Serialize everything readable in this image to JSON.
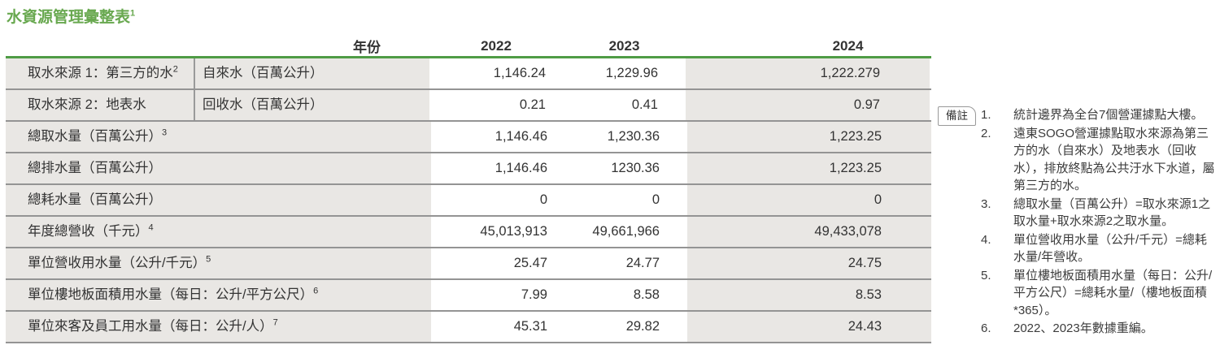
{
  "title": {
    "text": "水資源管理彙整表",
    "sup": "1"
  },
  "table": {
    "year_label": "年份",
    "years": [
      "2022",
      "2023",
      "2024"
    ],
    "rows": [
      {
        "label": "取水來源 1：第三方的水",
        "label_sup": "2",
        "sublabel": "自來水（百萬公升）",
        "values": [
          "1,146.24",
          "1,229.96",
          "1,222.279"
        ]
      },
      {
        "label": "取水來源 2：地表水",
        "sublabel": "回收水（百萬公升）",
        "values": [
          "0.21",
          "0.41",
          "0.97"
        ]
      },
      {
        "label": "總取水量（百萬公升）",
        "label_sup": "3",
        "values": [
          "1,146.46",
          "1,230.36",
          "1,223.25"
        ]
      },
      {
        "label": "總排水量（百萬公升）",
        "values": [
          "1,146.46",
          "1230.36",
          "1,223.25"
        ]
      },
      {
        "label": "總耗水量（百萬公升）",
        "values": [
          "0",
          "0",
          "0"
        ]
      },
      {
        "label": "年度總營收（千元）",
        "label_sup": "4",
        "values": [
          "45,013,913",
          "49,661,966",
          "49,433,078"
        ]
      },
      {
        "label": "單位營收用水量（公升/千元）",
        "label_sup": "5",
        "values": [
          "25.47",
          "24.77",
          "24.75"
        ]
      },
      {
        "label": "單位樓地板面積用水量（每日：公升/平方公尺）",
        "label_sup": "6",
        "values": [
          "7.99",
          "8.58",
          "8.53"
        ]
      },
      {
        "label": "單位來客及員工用水量（每日：公升/人）",
        "label_sup": "7",
        "values": [
          "45.31",
          "29.82",
          "24.43"
        ]
      }
    ]
  },
  "notes": {
    "badge": "備註",
    "items": [
      {
        "num": "1.",
        "text": "統計邊界為全台7個營運據點大樓。"
      },
      {
        "num": "2.",
        "text": "遠東SOGO營運據點取水來源為第三方的水（自來水）及地表水（回收水），排放終點為公共汙水下水道，屬第三方的水。"
      },
      {
        "num": "3.",
        "text": "總取水量（百萬公升）=取水來源1之取水量+取水來源2之取水量。"
      },
      {
        "num": "4.",
        "text": "單位營收用水量（公升/千元）=總耗水量/年營收。"
      },
      {
        "num": "5.",
        "text": "單位樓地板面積用水量（每日：公升/平方公尺）=總耗水量/（樓地板面積*365）。"
      },
      {
        "num": "6.",
        "text": "2022、2023年數據重編。"
      }
    ]
  },
  "colors": {
    "title_green": "#68a84f",
    "rule_green": "#4f9c45",
    "cell_gray": "#e9e7e4",
    "row_border": "#949494",
    "divider_gray": "#9a9a9a",
    "text_dark": "#333333",
    "notes_text": "#3c3c3c",
    "badge_border": "#999999"
  }
}
